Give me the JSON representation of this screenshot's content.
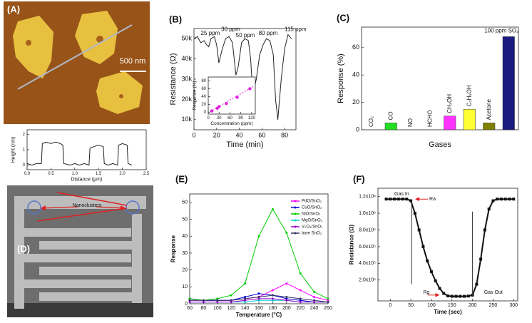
{
  "images": [
    {
      "label": "(A)",
      "scale_bar": "500 nm"
    },
    {
      "label": "(D)",
      "annotation": "Nanoclusters"
    }
  ],
  "chart_data": [
    {
      "type": "line",
      "xlabel": "Distance (μm)",
      "ylabel": "Height (nm)",
      "x": [
        0,
        0.1,
        0.2,
        0.3,
        0.32,
        0.4,
        0.5,
        0.6,
        0.7,
        0.75,
        0.77,
        0.9,
        1.0,
        1.1,
        1.2,
        1.3,
        1.32,
        1.4,
        1.5,
        1.6,
        1.62,
        1.7,
        1.8,
        1.9,
        1.92,
        2.0,
        2.1,
        2.12,
        2.2
      ],
      "series": [
        {
          "color": "#222222",
          "values": [
            0.1,
            0,
            0.1,
            0.1,
            1.4,
            1.5,
            1.4,
            1.5,
            1.4,
            1.3,
            0.1,
            0,
            0.1,
            0,
            0.1,
            0,
            1.1,
            1.2,
            1.3,
            1.2,
            0.1,
            0,
            0.1,
            0,
            1.3,
            1.4,
            1.3,
            0.1,
            0
          ]
        }
      ],
      "xlim": [
        0,
        2.5
      ],
      "ylim": [
        -0.3,
        2.3
      ],
      "xticks": [
        {
          "value": 0,
          "label": "0.0"
        },
        0.5,
        {
          "value": 1,
          "label": "1.0"
        },
        1.5,
        {
          "value": 2,
          "label": "2.0"
        },
        2.5
      ],
      "yticks": [
        0,
        1,
        2
      ]
    },
    {
      "type": "line",
      "panel_label": "(B)",
      "xlabel": "Time (min)",
      "ylabel": "Resistance (Ω)",
      "x": [
        0,
        3,
        6,
        9,
        11,
        13,
        15,
        18,
        20,
        22,
        25,
        28,
        31,
        34,
        37,
        39,
        42,
        45,
        48,
        50,
        52,
        55,
        58,
        61,
        64,
        67,
        70,
        72,
        74,
        77,
        80,
        83,
        86
      ],
      "series": [
        {
          "color": "#222222",
          "values": [
            50000,
            51000,
            48000,
            49000,
            47000,
            46000,
            50000,
            51000,
            47000,
            38000,
            45000,
            50000,
            51000,
            48000,
            32000,
            36000,
            48000,
            50000,
            49000,
            40000,
            22000,
            30000,
            42000,
            47000,
            50000,
            49000,
            42000,
            20000,
            10000,
            30000,
            45000,
            52000,
            50000
          ]
        }
      ],
      "xlim": [
        0,
        90
      ],
      "ylim": [
        5000,
        55000
      ],
      "xticks": [
        0,
        20,
        40,
        60,
        80
      ],
      "yticks": [
        {
          "value": 10000,
          "label": "10k"
        },
        {
          "value": 20000,
          "label": "20k"
        },
        {
          "value": 30000,
          "label": "30k"
        },
        {
          "value": 40000,
          "label": "40k"
        },
        {
          "value": 50000,
          "label": "50k"
        }
      ],
      "annotations": [
        "25 ppm",
        "30 ppm",
        "50 ppm",
        "80 ppm",
        "115 ppm"
      ]
    },
    {
      "type": "scatter",
      "xlabel": "Concentration (ppm)",
      "ylabel": "Response (%)",
      "x": [
        10,
        25,
        30,
        50,
        80,
        115
      ],
      "values": [
        3,
        10,
        14,
        22,
        38,
        60
      ],
      "color": "#e020e0",
      "xlim": [
        0,
        130
      ],
      "ylim": [
        -5,
        90
      ],
      "xticks": [
        0,
        30,
        60,
        90,
        120
      ],
      "yticks": [
        0,
        20,
        40,
        60,
        80
      ]
    },
    {
      "type": "bar",
      "panel_label": "(C)",
      "xlabel": "Gases",
      "ylabel": "Response (%)",
      "categories": [
        "CO₂",
        "CO",
        "NO",
        "HCHO",
        "CH₃OH",
        "C₂H₅OH",
        "Acetone",
        "100 ppm SO₂"
      ],
      "values": [
        0,
        5,
        0,
        0,
        10,
        15,
        5,
        68
      ],
      "colors": [
        "#22dd22",
        "#22dd22",
        "#22dd22",
        "#22dd22",
        "#ff33ff",
        "#ffff33",
        "#808000",
        "#1a1a80"
      ],
      "ylim": [
        0,
        75
      ],
      "yticks": [
        0,
        20,
        40,
        60
      ]
    },
    {
      "type": "line",
      "panel_label": "(E)",
      "xlabel": "Temperature (°C)",
      "ylabel": "Response",
      "legend": "upper-right",
      "markers": true,
      "x": [
        60,
        80,
        100,
        120,
        140,
        160,
        180,
        200,
        220,
        240,
        260
      ],
      "series": [
        {
          "name": "PdO/SnO₂",
          "color": "#ff00ff",
          "values": [
            2,
            2,
            2,
            2,
            3,
            4,
            8,
            12,
            8,
            4,
            2
          ]
        },
        {
          "name": "CuO/SnO₂",
          "color": "#0000cc",
          "values": [
            3,
            2,
            2,
            2,
            4,
            6,
            5,
            3,
            2,
            1,
            1
          ]
        },
        {
          "name": "NiO/SnO₂",
          "color": "#00cc00",
          "values": [
            3,
            2,
            3,
            5,
            12,
            40,
            56,
            42,
            18,
            7,
            3
          ]
        },
        {
          "name": "MgO/SnO₂",
          "color": "#00cccc",
          "values": [
            1,
            1,
            1,
            1,
            1,
            2,
            2,
            2,
            1,
            1,
            1
          ]
        },
        {
          "name": "V₂O₅/SnO₂",
          "color": "#9900cc",
          "values": [
            1,
            1,
            1,
            1,
            2,
            3,
            3,
            2,
            1,
            1,
            1
          ]
        },
        {
          "name": "bare SnO₂",
          "color": "#333366",
          "values": [
            2,
            2,
            2,
            2,
            3,
            4,
            5,
            4,
            3,
            2,
            1
          ]
        }
      ],
      "xlim": [
        60,
        260
      ],
      "ylim": [
        0,
        65
      ],
      "xticks": [
        60,
        80,
        100,
        120,
        140,
        160,
        180,
        200,
        220,
        240,
        260
      ],
      "yticks": [
        0,
        10,
        20,
        30,
        40,
        50,
        60
      ]
    },
    {
      "type": "line",
      "panel_label": "(F)",
      "xlabel": "Time (sec)",
      "ylabel": "Resistance (Ω)",
      "markers": true,
      "x": [
        -10,
        0,
        10,
        20,
        30,
        40,
        50,
        60,
        70,
        80,
        90,
        100,
        110,
        120,
        130,
        140,
        150,
        160,
        170,
        180,
        190,
        200,
        210,
        220,
        230,
        240,
        250,
        260,
        270,
        280,
        290,
        300
      ],
      "series": [
        {
          "color": "#111111",
          "values": [
            1170000,
            1170000,
            1170000,
            1170000,
            1170000,
            1170000,
            1150000,
            1000000,
            800000,
            600000,
            430000,
            300000,
            190000,
            100000,
            40000,
            10000,
            5000,
            5000,
            5000,
            5000,
            8000,
            20000,
            150000,
            450000,
            800000,
            1050000,
            1150000,
            1170000,
            1170000,
            1170000,
            1170000,
            1170000
          ]
        }
      ],
      "xlim": [
        -30,
        310
      ],
      "ylim": [
        -50000,
        1300000
      ],
      "xticks": [
        0,
        50,
        100,
        150,
        200,
        250,
        300
      ],
      "yticks": [
        {
          "value": 200000,
          "label": "2.0x10⁵"
        },
        {
          "value": 400000,
          "label": "4.0x10⁵"
        },
        {
          "value": 600000,
          "label": "6.0x10⁵"
        },
        {
          "value": 800000,
          "label": "8.0x10⁵"
        },
        {
          "value": 1000000,
          "label": "1.0x10⁶"
        },
        {
          "value": 1200000,
          "label": "1.2x10⁶"
        }
      ],
      "annotations": [
        "Gas In",
        "Ra",
        "Rg",
        "Gas Out"
      ]
    }
  ]
}
